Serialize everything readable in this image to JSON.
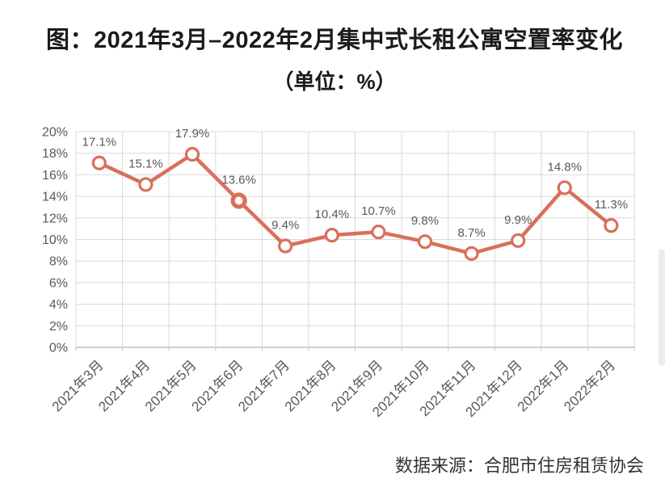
{
  "header": {
    "title": "图：2021年3月–2022年2月集中式长租公寓空置率变化",
    "subtitle": "（单位：%）"
  },
  "footer": {
    "source": "数据来源：合肥市住房租赁协会"
  },
  "chart_data": {
    "type": "line",
    "title": "图：2021年3月–2022年2月集中式长租公寓空置率变化",
    "subtitle": "（单位：%）",
    "unit": "%",
    "categories": [
      "2021年3月",
      "2021年4月",
      "2021年5月",
      "2021年6月",
      "2021年7月",
      "2021年8月",
      "2021年9月",
      "2021年10月",
      "2021年11月",
      "2021年12月",
      "2022年1月",
      "2022年2月"
    ],
    "values": [
      17.1,
      15.1,
      17.9,
      13.6,
      9.4,
      10.4,
      10.7,
      9.8,
      8.7,
      9.9,
      14.8,
      11.3
    ],
    "point_labels": [
      "17.1%",
      "15.1%",
      "17.9%",
      "13.6%",
      "9.4%",
      "10.4%",
      "10.7%",
      "9.8%",
      "8.7%",
      "9.9%",
      "14.8%",
      "11.3%"
    ],
    "highlight_index": 3,
    "xlabel": "",
    "ylabel": "",
    "ylim": [
      0,
      20
    ],
    "ytick_step": 2,
    "ytick_labels": [
      "0%",
      "2%",
      "4%",
      "6%",
      "8%",
      "10%",
      "12%",
      "14%",
      "16%",
      "18%",
      "20%"
    ],
    "grid": true,
    "legend_position": "none",
    "colors": {
      "line": "#D9705B",
      "marker_fill": "#FFFFFF",
      "grid": "#D9D9D9",
      "axis_line": "#BFBFBF",
      "tick_text": "#595959",
      "data_label_text": "#595959",
      "title_text": "#1B1B1B",
      "source_text": "#333333",
      "scrollbar": "#ECECEC"
    }
  }
}
